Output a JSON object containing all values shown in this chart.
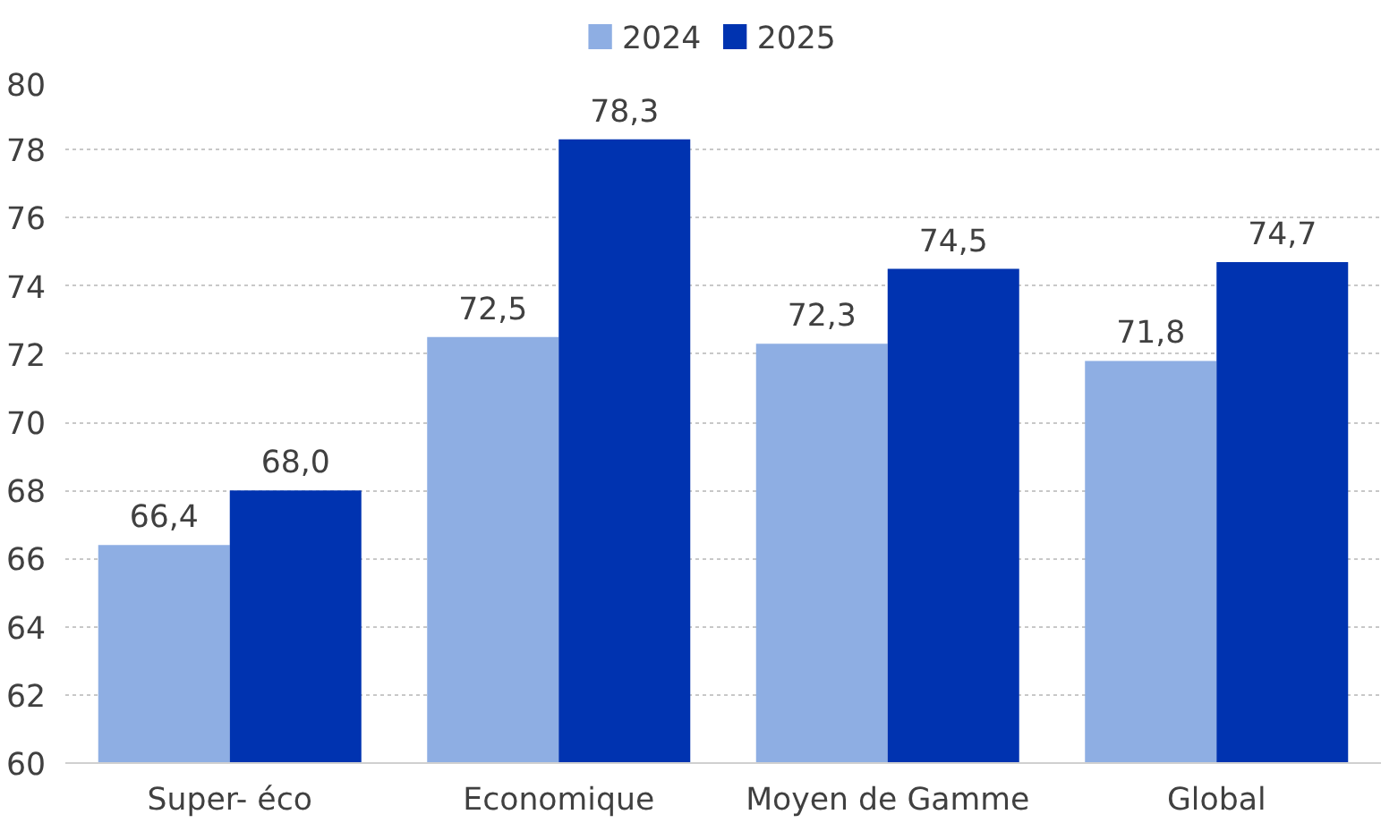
{
  "chart_data": {
    "type": "bar",
    "categories": [
      "Super- éco",
      "Economique",
      "Moyen de Gamme",
      "Global"
    ],
    "series": [
      {
        "name": "2024",
        "color": "#8eaee3",
        "values": [
          66.4,
          72.5,
          72.3,
          71.8
        ],
        "value_labels": [
          "66,4",
          "72,5",
          "72,3",
          "71,8"
        ]
      },
      {
        "name": "2025",
        "color": "#0033b0",
        "values": [
          68.0,
          78.3,
          74.5,
          74.7
        ],
        "value_labels": [
          "68,0",
          "78,3",
          "74,5",
          "74,7"
        ]
      }
    ],
    "ylim": [
      60,
      80
    ],
    "yticks": [
      60,
      62,
      64,
      66,
      68,
      70,
      72,
      74,
      76,
      78,
      80
    ],
    "grid": "y",
    "legend": "top"
  }
}
